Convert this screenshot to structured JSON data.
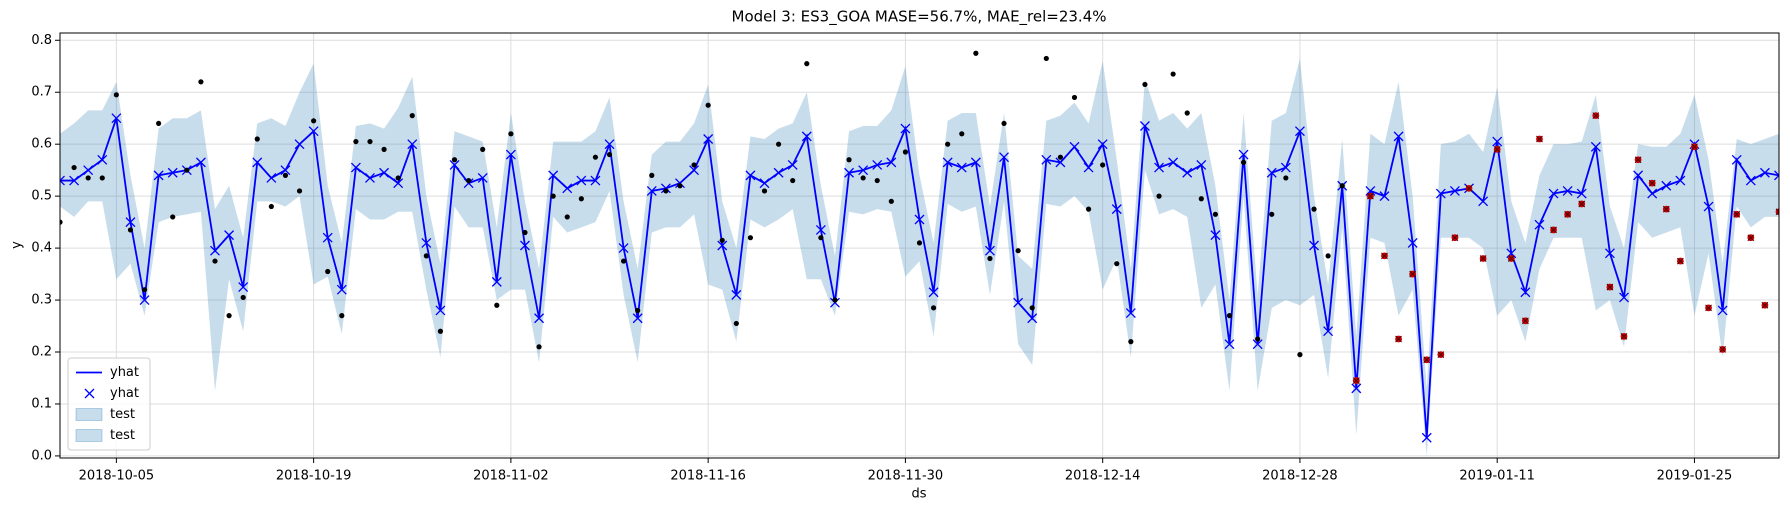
{
  "chart_data": {
    "type": "line",
    "title": "Model 3: ES3_GOA MASE=56.7%, MAE_rel=23.4%",
    "xlabel": "ds",
    "ylabel": "y",
    "x": [
      "2018-10-01",
      "2018-10-02",
      "2018-10-03",
      "2018-10-04",
      "2018-10-05",
      "2018-10-06",
      "2018-10-07",
      "2018-10-08",
      "2018-10-09",
      "2018-10-10",
      "2018-10-11",
      "2018-10-12",
      "2018-10-13",
      "2018-10-14",
      "2018-10-15",
      "2018-10-16",
      "2018-10-17",
      "2018-10-18",
      "2018-10-19",
      "2018-10-20",
      "2018-10-21",
      "2018-10-22",
      "2018-10-23",
      "2018-10-24",
      "2018-10-25",
      "2018-10-26",
      "2018-10-27",
      "2018-10-28",
      "2018-10-29",
      "2018-10-30",
      "2018-10-31",
      "2018-11-01",
      "2018-11-02",
      "2018-11-03",
      "2018-11-04",
      "2018-11-05",
      "2018-11-06",
      "2018-11-07",
      "2018-11-08",
      "2018-11-09",
      "2018-11-10",
      "2018-11-11",
      "2018-11-12",
      "2018-11-13",
      "2018-11-14",
      "2018-11-15",
      "2018-11-16",
      "2018-11-17",
      "2018-11-18",
      "2018-11-19",
      "2018-11-20",
      "2018-11-21",
      "2018-11-22",
      "2018-11-23",
      "2018-11-24",
      "2018-11-25",
      "2018-11-26",
      "2018-11-27",
      "2018-11-28",
      "2018-11-29",
      "2018-11-30",
      "2018-12-01",
      "2018-12-02",
      "2018-12-03",
      "2018-12-04",
      "2018-12-05",
      "2018-12-06",
      "2018-12-07",
      "2018-12-08",
      "2018-12-09",
      "2018-12-10",
      "2018-12-11",
      "2018-12-12",
      "2018-12-13",
      "2018-12-14",
      "2018-12-15",
      "2018-12-16",
      "2018-12-17",
      "2018-12-18",
      "2018-12-19",
      "2018-12-20",
      "2018-12-21",
      "2018-12-22",
      "2018-12-23",
      "2018-12-24",
      "2018-12-25",
      "2018-12-26",
      "2018-12-27",
      "2018-12-28",
      "2018-12-29",
      "2018-12-30",
      "2018-12-31",
      "2019-01-01",
      "2019-01-02",
      "2019-01-03",
      "2019-01-04",
      "2019-01-05",
      "2019-01-06",
      "2019-01-07",
      "2019-01-08",
      "2019-01-09",
      "2019-01-10",
      "2019-01-11",
      "2019-01-12",
      "2019-01-13",
      "2019-01-14",
      "2019-01-15",
      "2019-01-16",
      "2019-01-17",
      "2019-01-18",
      "2019-01-19",
      "2019-01-20",
      "2019-01-21",
      "2019-01-22",
      "2019-01-23",
      "2019-01-24",
      "2019-01-25",
      "2019-01-26",
      "2019-01-27",
      "2019-01-28",
      "2019-01-29",
      "2019-01-30",
      "2019-01-31"
    ],
    "yhat": [
      0.53,
      0.53,
      0.55,
      0.57,
      0.65,
      0.45,
      0.3,
      0.54,
      0.545,
      0.55,
      0.565,
      0.395,
      0.425,
      0.325,
      0.565,
      0.535,
      0.55,
      0.6,
      0.625,
      0.42,
      0.32,
      0.555,
      0.535,
      0.545,
      0.525,
      0.6,
      0.41,
      0.28,
      0.56,
      0.525,
      0.535,
      0.335,
      0.58,
      0.405,
      0.265,
      0.54,
      0.515,
      0.53,
      0.53,
      0.6,
      0.4,
      0.265,
      0.51,
      0.515,
      0.525,
      0.55,
      0.61,
      0.405,
      0.31,
      0.54,
      0.525,
      0.545,
      0.56,
      0.615,
      0.435,
      0.295,
      0.545,
      0.55,
      0.56,
      0.565,
      0.63,
      0.455,
      0.315,
      0.565,
      0.555,
      0.565,
      0.395,
      0.575,
      0.295,
      0.265,
      0.57,
      0.565,
      0.595,
      0.555,
      0.6,
      0.475,
      0.275,
      0.635,
      0.555,
      0.565,
      0.545,
      0.56,
      0.425,
      0.215,
      0.58,
      0.215,
      0.545,
      0.555,
      0.625,
      0.405,
      0.24,
      0.52,
      0.13,
      0.51,
      0.5,
      0.615,
      0.41,
      0.035,
      0.505,
      0.51,
      0.515,
      0.49,
      0.605,
      0.39,
      0.315,
      0.445,
      0.505,
      0.51,
      0.505,
      0.595,
      0.39,
      0.305,
      0.54,
      0.505,
      0.52,
      0.53,
      0.6,
      0.48,
      0.28,
      0.57,
      0.53,
      0.545,
      0.54
    ],
    "yhat_upper": [
      0.62,
      0.64,
      0.665,
      0.665,
      0.72,
      0.54,
      0.4,
      0.63,
      0.65,
      0.65,
      0.665,
      0.475,
      0.52,
      0.42,
      0.64,
      0.65,
      0.635,
      0.7,
      0.755,
      0.52,
      0.41,
      0.635,
      0.64,
      0.63,
      0.67,
      0.73,
      0.5,
      0.37,
      0.625,
      0.615,
      0.605,
      0.44,
      0.66,
      0.49,
      0.36,
      0.605,
      0.605,
      0.605,
      0.625,
      0.69,
      0.49,
      0.36,
      0.58,
      0.605,
      0.605,
      0.64,
      0.715,
      0.49,
      0.4,
      0.615,
      0.61,
      0.63,
      0.64,
      0.7,
      0.52,
      0.385,
      0.625,
      0.635,
      0.635,
      0.665,
      0.75,
      0.54,
      0.41,
      0.645,
      0.66,
      0.66,
      0.48,
      0.66,
      0.385,
      0.36,
      0.645,
      0.655,
      0.68,
      0.64,
      0.76,
      0.57,
      0.36,
      0.725,
      0.645,
      0.66,
      0.63,
      0.66,
      0.52,
      0.3,
      0.66,
      0.31,
      0.645,
      0.66,
      0.765,
      0.5,
      0.33,
      0.61,
      0.23,
      0.62,
      0.6,
      0.72,
      0.5,
      0.13,
      0.6,
      0.605,
      0.62,
      0.585,
      0.71,
      0.49,
      0.41,
      0.54,
      0.6,
      0.6,
      0.605,
      0.695,
      0.48,
      0.4,
      0.6,
      0.595,
      0.595,
      0.62,
      0.695,
      0.57,
      0.37,
      0.61,
      0.6,
      0.61,
      0.62
    ],
    "yhat_lower": [
      0.48,
      0.46,
      0.49,
      0.49,
      0.34,
      0.37,
      0.27,
      0.45,
      0.46,
      0.465,
      0.47,
      0.125,
      0.34,
      0.24,
      0.49,
      0.49,
      0.48,
      0.5,
      0.33,
      0.345,
      0.235,
      0.475,
      0.455,
      0.455,
      0.47,
      0.47,
      0.32,
      0.19,
      0.48,
      0.44,
      0.44,
      0.3,
      0.32,
      0.32,
      0.18,
      0.46,
      0.43,
      0.44,
      0.45,
      0.51,
      0.31,
      0.18,
      0.43,
      0.44,
      0.44,
      0.465,
      0.33,
      0.32,
      0.22,
      0.455,
      0.44,
      0.455,
      0.475,
      0.34,
      0.34,
      0.27,
      0.47,
      0.465,
      0.475,
      0.47,
      0.345,
      0.375,
      0.23,
      0.485,
      0.47,
      0.48,
      0.31,
      0.49,
      0.215,
      0.175,
      0.485,
      0.48,
      0.5,
      0.47,
      0.32,
      0.38,
      0.19,
      0.55,
      0.465,
      0.475,
      0.46,
      0.285,
      0.33,
      0.125,
      0.5,
      0.125,
      0.285,
      0.3,
      0.29,
      0.31,
      0.15,
      0.44,
      0.04,
      0.42,
      0.41,
      0.27,
      0.32,
      0.0,
      0.42,
      0.42,
      0.42,
      0.4,
      0.27,
      0.3,
      0.22,
      0.36,
      0.42,
      0.42,
      0.42,
      0.28,
      0.3,
      0.21,
      0.45,
      0.42,
      0.43,
      0.44,
      0.27,
      0.39,
      0.19,
      0.48,
      0.44,
      0.46,
      0.46
    ],
    "actual": [
      0.45,
      0.555,
      0.535,
      0.535,
      0.695,
      0.435,
      0.32,
      0.64,
      0.46,
      0.55,
      0.72,
      0.375,
      0.27,
      0.305,
      0.61,
      0.48,
      0.54,
      0.51,
      0.645,
      0.355,
      0.27,
      0.605,
      0.605,
      0.59,
      0.535,
      0.655,
      0.385,
      0.24,
      0.57,
      0.53,
      0.59,
      0.29,
      0.62,
      0.43,
      0.21,
      0.5,
      0.46,
      0.495,
      0.575,
      0.58,
      0.375,
      0.28,
      0.54,
      0.51,
      0.52,
      0.56,
      0.675,
      0.415,
      0.255,
      0.42,
      0.51,
      0.6,
      0.53,
      0.755,
      0.42,
      0.3,
      0.57,
      0.535,
      0.53,
      0.49,
      0.585,
      0.41,
      0.285,
      0.6,
      0.62,
      0.775,
      0.38,
      0.64,
      0.395,
      0.285,
      0.765,
      0.575,
      0.69,
      0.475,
      0.56,
      0.37,
      0.22,
      0.715,
      0.5,
      0.735,
      0.66,
      0.495,
      0.465,
      0.27,
      0.565,
      0.225,
      0.465,
      0.535,
      0.195,
      0.475,
      0.385,
      0.52,
      null,
      null,
      null,
      null,
      null,
      null,
      null,
      null,
      null,
      null,
      null,
      null,
      null,
      null,
      null,
      null,
      null,
      null,
      null,
      null,
      null,
      null,
      null,
      null,
      null,
      null,
      null,
      null,
      null,
      null,
      null
    ],
    "test_actual": [
      null,
      null,
      null,
      null,
      null,
      null,
      null,
      null,
      null,
      null,
      null,
      null,
      null,
      null,
      null,
      null,
      null,
      null,
      null,
      null,
      null,
      null,
      null,
      null,
      null,
      null,
      null,
      null,
      null,
      null,
      null,
      null,
      null,
      null,
      null,
      null,
      null,
      null,
      null,
      null,
      null,
      null,
      null,
      null,
      null,
      null,
      null,
      null,
      null,
      null,
      null,
      null,
      null,
      null,
      null,
      null,
      null,
      null,
      null,
      null,
      null,
      null,
      null,
      null,
      null,
      null,
      null,
      null,
      null,
      null,
      null,
      null,
      null,
      null,
      null,
      null,
      null,
      null,
      null,
      null,
      null,
      null,
      null,
      null,
      null,
      null,
      null,
      null,
      null,
      null,
      null,
      null,
      0.145,
      0.5,
      0.385,
      0.225,
      0.35,
      0.185,
      0.195,
      0.42,
      0.515,
      0.38,
      0.59,
      0.38,
      0.26,
      0.61,
      0.435,
      0.465,
      0.485,
      0.655,
      0.325,
      0.23,
      0.57,
      0.525,
      0.475,
      0.375,
      0.595,
      0.285,
      0.205,
      0.465,
      0.42,
      0.29,
      0.47
    ],
    "actual_color": "#000000",
    "test_color": "#cc0000",
    "series": [
      {
        "name": "yhat",
        "style": "line",
        "color": "#0000ff"
      },
      {
        "name": "yhat",
        "style": "x",
        "color": "#0000ff"
      },
      {
        "name": "test",
        "style": "band",
        "color": "#1f77b4"
      },
      {
        "name": "test",
        "style": "band",
        "color": "#1f77b4"
      }
    ],
    "xlim": [
      "2018-10-01",
      "2019-01-31"
    ],
    "xticks": [
      "2018-10-05",
      "2018-10-19",
      "2018-11-02",
      "2018-11-16",
      "2018-11-30",
      "2018-12-14",
      "2018-12-28",
      "2019-01-11",
      "2019-01-25"
    ],
    "ylim": [
      -0.004,
      0.814
    ],
    "yticks": [
      {
        "value": 0,
        "label": "0.0"
      },
      0.1,
      0.2,
      0.3,
      0.4,
      0.5,
      0.6,
      0.7,
      0.8
    ],
    "grid": true,
    "legend": "lower left"
  }
}
